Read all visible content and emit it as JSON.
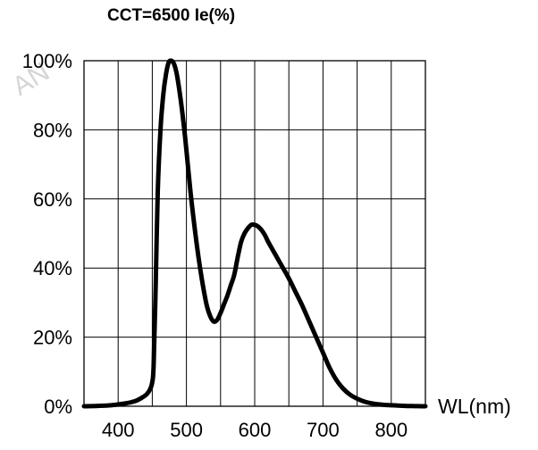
{
  "chart_data": {
    "type": "line",
    "title": "CCT=6500 Ie(%)",
    "xlabel": "WL(nm)",
    "ylabel": "",
    "xlim": [
      350,
      850
    ],
    "ylim": [
      0,
      100
    ],
    "x_ticks": [
      400,
      500,
      600,
      700,
      800
    ],
    "x_tick_labels": [
      "400",
      "500",
      "600",
      "700",
      "800"
    ],
    "x_grid": [
      350,
      400,
      450,
      500,
      550,
      600,
      650,
      700,
      750,
      800,
      850
    ],
    "y_ticks": [
      0,
      20,
      40,
      60,
      80,
      100
    ],
    "y_tick_labels": [
      "0%",
      "20%",
      "40%",
      "60%",
      "80%",
      "100%"
    ],
    "grid": true,
    "legend": false,
    "series": [
      {
        "color": "#000000",
        "x": [
          350,
          370,
          390,
          410,
          425,
          435,
          442,
          447,
          450,
          452,
          455,
          458,
          462,
          466,
          470,
          474,
          478,
          482,
          486,
          490,
          494,
          498,
          502,
          506,
          510,
          515,
          520,
          525,
          530,
          535,
          540,
          545,
          550,
          555,
          560,
          565,
          570,
          575,
          580,
          585,
          590,
          595,
          600,
          605,
          610,
          615,
          620,
          630,
          640,
          650,
          660,
          670,
          680,
          690,
          700,
          710,
          720,
          730,
          740,
          750,
          760,
          770,
          780,
          790,
          800,
          810,
          820,
          830,
          840,
          850
        ],
        "y": [
          0,
          0.1,
          0.3,
          0.8,
          1.5,
          2.5,
          3.5,
          5,
          7,
          12,
          35,
          62,
          80,
          90,
          96,
          99.5,
          100,
          99,
          96,
          91,
          85,
          78,
          70,
          62,
          55,
          47,
          40,
          34,
          29,
          26,
          24.5,
          25,
          27,
          29.5,
          32,
          35,
          38,
          43,
          47.5,
          50,
          51.5,
          52.5,
          52.5,
          52,
          51,
          49.5,
          47.5,
          44,
          40.5,
          37,
          33,
          29,
          24.5,
          20,
          15.5,
          11,
          7.5,
          5,
          3.3,
          2.2,
          1.4,
          0.9,
          0.6,
          0.4,
          0.3,
          0.2,
          0.1,
          0.05,
          0.02,
          0
        ]
      }
    ],
    "watermark": "AN"
  }
}
